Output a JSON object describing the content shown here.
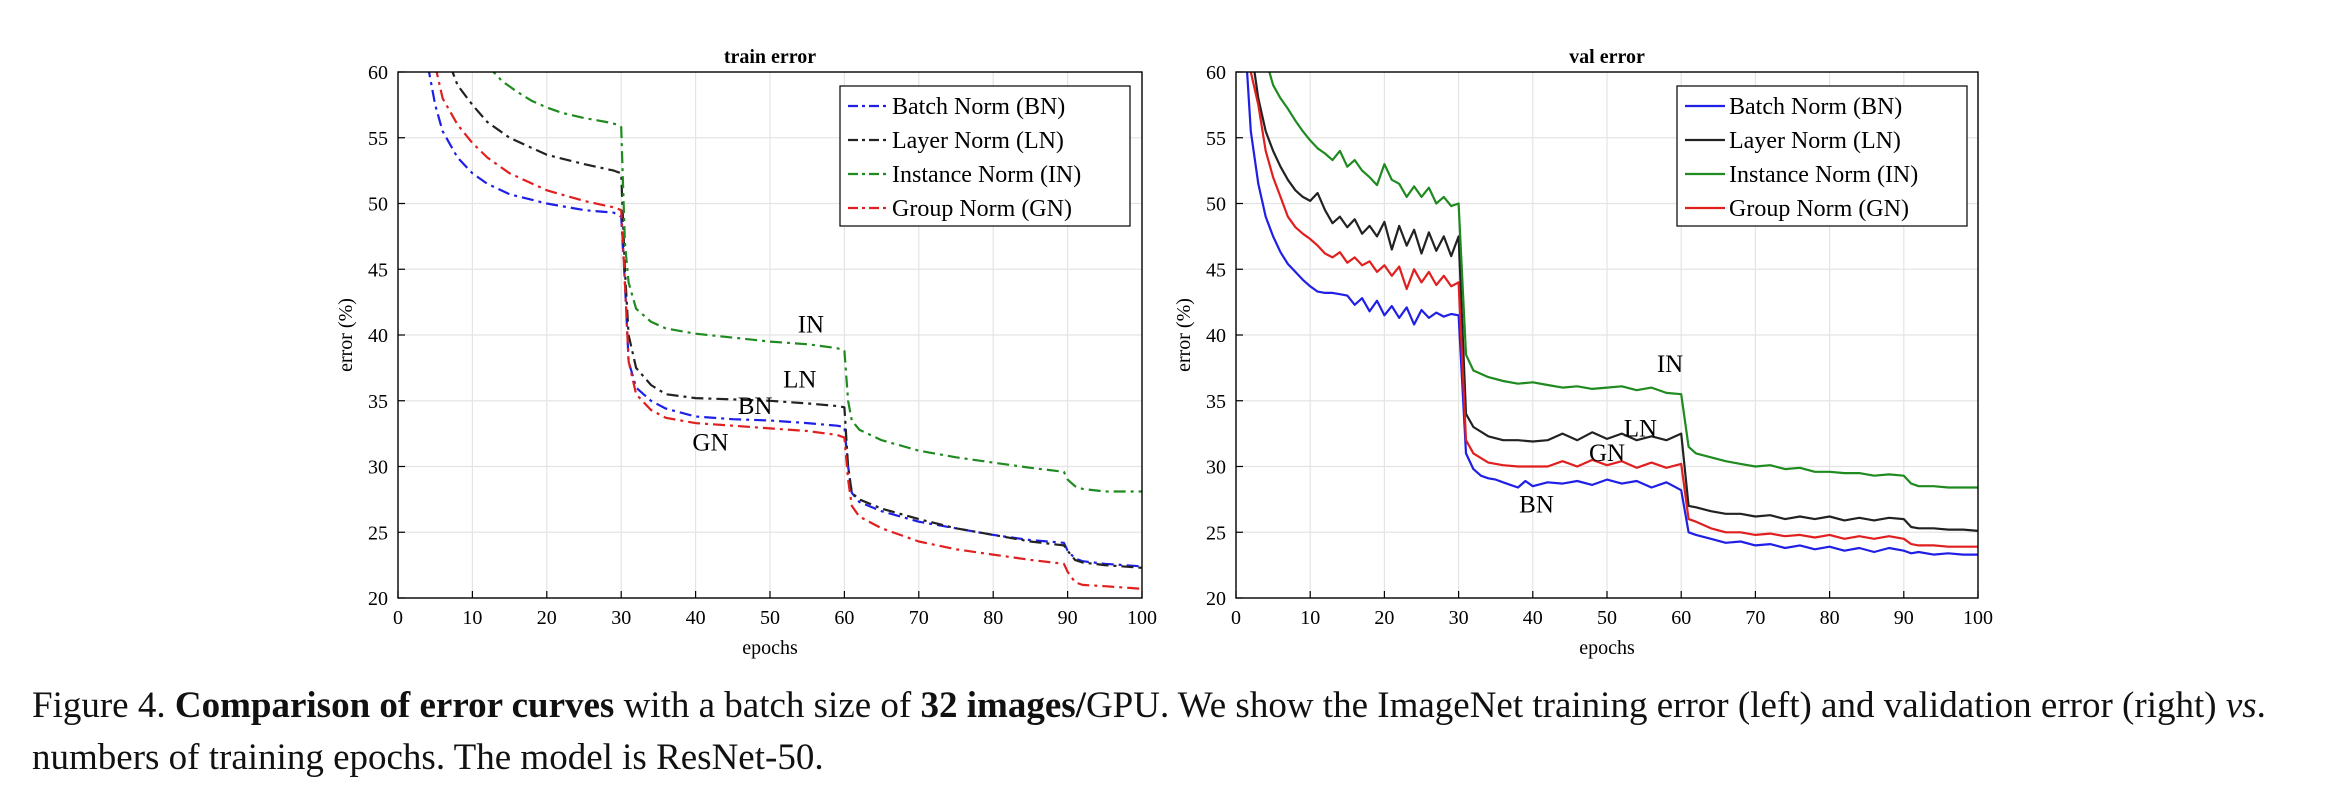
{
  "chart_data": [
    {
      "type": "line",
      "title": "train error",
      "xlabel": "epochs",
      "ylabel": "error (%)",
      "xlim": [
        0,
        100
      ],
      "ylim": [
        20,
        60
      ],
      "xticks": [
        0,
        10,
        20,
        30,
        40,
        50,
        60,
        70,
        80,
        90,
        100
      ],
      "yticks": [
        20,
        25,
        30,
        35,
        40,
        45,
        50,
        55,
        60
      ],
      "grid": true,
      "legend_position": "top-right",
      "line_style": "dashdot",
      "series": [
        {
          "name": "Batch Norm (BN)",
          "color": "#1f1fe6",
          "x": [
            4,
            5,
            6,
            8,
            10,
            12,
            15,
            20,
            25,
            29,
            30,
            30.5,
            31,
            32,
            34,
            36,
            40,
            45,
            50,
            55,
            59,
            60,
            60.5,
            61,
            62,
            65,
            70,
            75,
            80,
            85,
            89.5,
            90,
            91,
            92,
            95,
            100
          ],
          "values": [
            60.5,
            57.5,
            55.5,
            53.5,
            52.3,
            51.5,
            50.7,
            50.0,
            49.5,
            49.3,
            49.0,
            44,
            38,
            36,
            35,
            34.4,
            33.8,
            33.6,
            33.5,
            33.3,
            33.1,
            33.0,
            30,
            28,
            27.3,
            26.6,
            25.8,
            25.3,
            24.8,
            24.4,
            24.2,
            23.6,
            23.0,
            22.8,
            22.6,
            22.4
          ]
        },
        {
          "name": "Layer Norm (LN)",
          "color": "#222222",
          "x": [
            7,
            8,
            10,
            12,
            15,
            20,
            25,
            29,
            30,
            30.5,
            31,
            32,
            34,
            36,
            40,
            45,
            50,
            55,
            59,
            60,
            60.5,
            61,
            62,
            65,
            70,
            75,
            80,
            85,
            89.5,
            90,
            91,
            92,
            95,
            100
          ],
          "values": [
            60.5,
            59.0,
            57.5,
            56.2,
            55.0,
            53.7,
            53.0,
            52.5,
            52.3,
            45,
            40,
            37.5,
            36.2,
            35.5,
            35.2,
            35.1,
            35.0,
            34.8,
            34.6,
            34.5,
            30,
            28,
            27.5,
            26.8,
            26.0,
            25.3,
            24.8,
            24.3,
            24.0,
            23.6,
            22.9,
            22.7,
            22.5,
            22.3
          ]
        },
        {
          "name": "Instance Norm (IN)",
          "color": "#1f8a1f",
          "x": [
            12,
            14,
            16,
            18,
            20,
            22,
            25,
            28,
            29.5,
            30,
            30.5,
            31,
            32,
            34,
            36,
            40,
            45,
            50,
            55,
            59,
            60,
            60.5,
            61,
            62,
            65,
            70,
            75,
            80,
            85,
            89.5,
            90,
            91,
            92,
            95,
            100
          ],
          "values": [
            60.5,
            59.3,
            58.5,
            57.8,
            57.3,
            56.9,
            56.5,
            56.2,
            56.0,
            55.8,
            47,
            44,
            42.0,
            41.0,
            40.5,
            40.1,
            39.8,
            39.5,
            39.3,
            39.0,
            38.8,
            35,
            33.5,
            32.8,
            32.0,
            31.2,
            30.7,
            30.3,
            29.9,
            29.6,
            29.0,
            28.5,
            28.3,
            28.1,
            28.1
          ]
        },
        {
          "name": "Group Norm (GN)",
          "color": "#e01f1f",
          "x": [
            5,
            6,
            8,
            10,
            12,
            15,
            20,
            25,
            29,
            30,
            30.5,
            31,
            32,
            34,
            36,
            40,
            45,
            50,
            55,
            59,
            60,
            60.5,
            61,
            62,
            65,
            70,
            75,
            80,
            85,
            89.5,
            90,
            91,
            92,
            95,
            100
          ],
          "values": [
            60.5,
            58.0,
            56.0,
            54.6,
            53.5,
            52.3,
            51.0,
            50.2,
            49.7,
            49.5,
            44,
            38,
            35.5,
            34.3,
            33.7,
            33.3,
            33.1,
            32.9,
            32.7,
            32.4,
            32.2,
            29,
            27,
            26.2,
            25.3,
            24.3,
            23.7,
            23.3,
            22.9,
            22.6,
            22.0,
            21.2,
            21.0,
            20.9,
            20.7
          ]
        }
      ],
      "annotations": [
        {
          "text": "IN",
          "x": 55.5,
          "y": 40.2
        },
        {
          "text": "LN",
          "x": 54.0,
          "y": 36.0
        },
        {
          "text": "BN",
          "x": 48.0,
          "y": 34.0
        },
        {
          "text": "GN",
          "x": 42.0,
          "y": 31.2
        }
      ]
    },
    {
      "type": "line",
      "title": "val error",
      "xlabel": "epochs",
      "ylabel": "error (%)",
      "xlim": [
        0,
        100
      ],
      "ylim": [
        20,
        60
      ],
      "xticks": [
        0,
        10,
        20,
        30,
        40,
        50,
        60,
        70,
        80,
        90,
        100
      ],
      "yticks": [
        20,
        25,
        30,
        35,
        40,
        45,
        50,
        55,
        60
      ],
      "grid": true,
      "legend_position": "top-right",
      "line_style": "solid",
      "series": [
        {
          "name": "Batch Norm (BN)",
          "color": "#1f1fe6",
          "x": [
            1.5,
            2,
            3,
            4,
            5,
            6,
            7,
            8,
            9,
            10,
            11,
            12,
            13,
            14,
            15,
            16,
            17,
            18,
            19,
            20,
            21,
            22,
            23,
            24,
            25,
            26,
            27,
            28,
            29,
            30,
            31,
            32,
            33,
            34,
            35,
            36,
            37,
            38,
            39,
            40,
            42,
            44,
            46,
            48,
            50,
            52,
            54,
            56,
            58,
            60,
            61,
            62,
            64,
            66,
            68,
            70,
            72,
            74,
            76,
            78,
            80,
            82,
            84,
            86,
            88,
            90,
            91,
            92,
            94,
            96,
            98,
            100
          ],
          "values": [
            60,
            55.5,
            51.5,
            49.0,
            47.5,
            46.3,
            45.4,
            44.8,
            44.2,
            43.7,
            43.3,
            43.2,
            43.2,
            43.1,
            43.0,
            42.3,
            42.8,
            41.8,
            42.6,
            41.5,
            42.2,
            41.3,
            42.1,
            40.8,
            41.9,
            41.3,
            41.7,
            41.4,
            41.6,
            41.5,
            31.0,
            29.8,
            29.3,
            29.1,
            29.0,
            28.8,
            28.6,
            28.4,
            28.9,
            28.5,
            28.8,
            28.7,
            28.9,
            28.6,
            29.0,
            28.7,
            28.9,
            28.4,
            28.8,
            28.2,
            25.0,
            24.8,
            24.5,
            24.2,
            24.3,
            24.0,
            24.1,
            23.8,
            24.0,
            23.7,
            23.9,
            23.6,
            23.8,
            23.5,
            23.8,
            23.6,
            23.4,
            23.5,
            23.3,
            23.4,
            23.3,
            23.3
          ]
        },
        {
          "name": "Layer Norm (LN)",
          "color": "#222222",
          "x": [
            2.5,
            3,
            4,
            5,
            6,
            7,
            8,
            9,
            10,
            11,
            12,
            13,
            14,
            15,
            16,
            17,
            18,
            19,
            20,
            21,
            22,
            23,
            24,
            25,
            26,
            27,
            28,
            29,
            30,
            31,
            32,
            34,
            36,
            38,
            40,
            42,
            44,
            46,
            48,
            50,
            52,
            54,
            56,
            58,
            60,
            61,
            62,
            64,
            66,
            68,
            70,
            72,
            74,
            76,
            78,
            80,
            82,
            84,
            86,
            88,
            90,
            91,
            92,
            94,
            96,
            98,
            100
          ],
          "values": [
            60,
            58.0,
            55.5,
            54.0,
            52.8,
            51.8,
            51.0,
            50.5,
            50.2,
            50.8,
            49.5,
            48.5,
            49.0,
            48.2,
            48.8,
            47.7,
            48.3,
            47.5,
            48.6,
            46.5,
            48.3,
            46.8,
            48.0,
            46.2,
            47.8,
            46.4,
            47.5,
            46.0,
            47.5,
            34.0,
            33.0,
            32.3,
            32.0,
            32.0,
            31.9,
            32.0,
            32.5,
            32.0,
            32.6,
            32.1,
            32.5,
            32.0,
            32.3,
            32.0,
            32.5,
            27.0,
            26.9,
            26.6,
            26.4,
            26.4,
            26.2,
            26.3,
            26.0,
            26.2,
            26.0,
            26.2,
            25.9,
            26.1,
            25.9,
            26.1,
            26.0,
            25.4,
            25.3,
            25.3,
            25.2,
            25.2,
            25.1
          ]
        },
        {
          "name": "Instance Norm (IN)",
          "color": "#1f8a1f",
          "x": [
            4.5,
            5,
            6,
            7,
            8,
            9,
            10,
            11,
            12,
            13,
            14,
            15,
            16,
            17,
            18,
            19,
            20,
            21,
            22,
            23,
            24,
            25,
            26,
            27,
            28,
            29,
            30,
            31,
            32,
            34,
            36,
            38,
            40,
            42,
            44,
            46,
            48,
            50,
            52,
            54,
            56,
            58,
            60,
            61,
            62,
            64,
            66,
            68,
            70,
            72,
            74,
            76,
            78,
            80,
            82,
            84,
            86,
            88,
            90,
            91,
            92,
            94,
            96,
            98,
            100
          ],
          "values": [
            60,
            59.0,
            58.0,
            57.2,
            56.3,
            55.5,
            54.8,
            54.2,
            53.8,
            53.3,
            54.0,
            52.8,
            53.3,
            52.5,
            52.0,
            51.4,
            53.0,
            51.8,
            51.5,
            50.5,
            51.3,
            50.5,
            51.2,
            50.0,
            50.5,
            49.8,
            50.0,
            38.5,
            37.3,
            36.8,
            36.5,
            36.3,
            36.4,
            36.2,
            36.0,
            36.1,
            35.9,
            36.0,
            36.1,
            35.8,
            36.0,
            35.6,
            35.5,
            31.5,
            31.0,
            30.7,
            30.4,
            30.2,
            30.0,
            30.1,
            29.8,
            29.9,
            29.6,
            29.6,
            29.5,
            29.5,
            29.3,
            29.4,
            29.3,
            28.7,
            28.5,
            28.5,
            28.4,
            28.4,
            28.4
          ]
        },
        {
          "name": "Group Norm (GN)",
          "color": "#e01f1f",
          "x": [
            2,
            3,
            4,
            5,
            6,
            7,
            8,
            9,
            10,
            11,
            12,
            13,
            14,
            15,
            16,
            17,
            18,
            19,
            20,
            21,
            22,
            23,
            24,
            25,
            26,
            27,
            28,
            29,
            30,
            31,
            32,
            34,
            36,
            38,
            40,
            42,
            44,
            46,
            48,
            50,
            52,
            54,
            56,
            58,
            60,
            61,
            62,
            64,
            66,
            68,
            70,
            72,
            74,
            76,
            78,
            80,
            82,
            84,
            86,
            88,
            90,
            91,
            92,
            94,
            96,
            98,
            100
          ],
          "values": [
            60,
            57.5,
            54.0,
            52.0,
            50.5,
            49.0,
            48.2,
            47.7,
            47.3,
            46.8,
            46.2,
            45.9,
            46.3,
            45.5,
            45.9,
            45.3,
            45.6,
            44.8,
            45.3,
            44.5,
            45.2,
            43.5,
            45.0,
            44.0,
            44.8,
            43.8,
            44.5,
            43.7,
            44.0,
            32.0,
            31.0,
            30.3,
            30.1,
            30.0,
            30.0,
            30.0,
            30.4,
            30.0,
            30.5,
            30.1,
            30.4,
            29.9,
            30.3,
            29.9,
            30.2,
            26.0,
            25.8,
            25.3,
            25.0,
            25.0,
            24.8,
            24.9,
            24.7,
            24.8,
            24.6,
            24.8,
            24.5,
            24.7,
            24.5,
            24.7,
            24.5,
            24.1,
            24.0,
            24.0,
            23.9,
            23.9,
            23.9
          ]
        }
      ],
      "annotations": [
        {
          "text": "IN",
          "x": 58.5,
          "y": 37.2
        },
        {
          "text": "LN",
          "x": 54.5,
          "y": 32.3
        },
        {
          "text": "GN",
          "x": 50.0,
          "y": 30.4
        },
        {
          "text": "BN",
          "x": 40.5,
          "y": 26.5
        }
      ]
    }
  ],
  "caption": {
    "prefix": "Figure 4. ",
    "bold1": "Comparison of error curves",
    "mid1": " with a batch size of ",
    "bold2": "32 images/",
    "mid2": "GPU. We show the ImageNet training error (left) and validation error (right) ",
    "italic": "vs",
    "suffix": ". numbers of training epochs. The model is ResNet-50."
  }
}
